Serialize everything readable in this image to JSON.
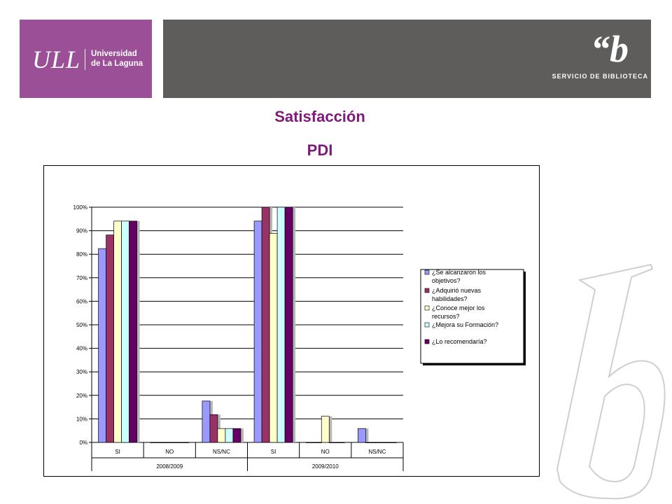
{
  "header": {
    "ull_mark": "ULL",
    "ull_name_line1": "Universidad",
    "ull_name_line2": "de La Laguna",
    "biblioteca_logo": "“b",
    "biblioteca_label": "SERVICIO DE BIBLIOTECA"
  },
  "title_line1": "Satisfacción",
  "title_line2": "PDI",
  "colors": {
    "ull_purple": "#9b4f96",
    "header_grey": "#5f5d5c",
    "title_purple": "#7e1a78"
  },
  "chart_data": {
    "type": "bar",
    "ytick_labels": [
      "0%",
      "10%",
      "20%",
      "30%",
      "40%",
      "50%",
      "60%",
      "70%",
      "80%",
      "90%",
      "100%"
    ],
    "ylim": [
      0,
      100
    ],
    "grid": true,
    "legend_position": "right",
    "groups": [
      {
        "name": "2008/2009",
        "categories": [
          "SI",
          "NO",
          "NS/NC"
        ]
      },
      {
        "name": "2009/2010",
        "categories": [
          "SI",
          "NO",
          "NS/NC"
        ]
      }
    ],
    "categories": [
      "SI",
      "NO",
      "NS/NC",
      "SI",
      "NO",
      "NS/NC"
    ],
    "series": [
      {
        "name": "¿Se alcanzaron los objetivos?",
        "color": "#9999ff",
        "values": [
          82.4,
          0,
          17.6,
          94.1,
          0,
          5.9
        ]
      },
      {
        "name": "¿Adquirió nuevas habilidades?",
        "color": "#993366",
        "values": [
          88.2,
          0,
          11.8,
          100,
          0,
          0
        ]
      },
      {
        "name": "¿Conoce mejor los recursos?",
        "color": "#ffffcc",
        "values": [
          94.1,
          0,
          5.9,
          88.9,
          11.1,
          0
        ]
      },
      {
        "name": "¿Mejora su Formación?",
        "color": "#ccffff",
        "values": [
          94.1,
          0,
          5.9,
          100,
          0,
          0
        ]
      },
      {
        "name": "¿Lo recomendaría?",
        "color": "#660066",
        "values": [
          94.1,
          0,
          5.9,
          100,
          0,
          0
        ]
      }
    ]
  }
}
